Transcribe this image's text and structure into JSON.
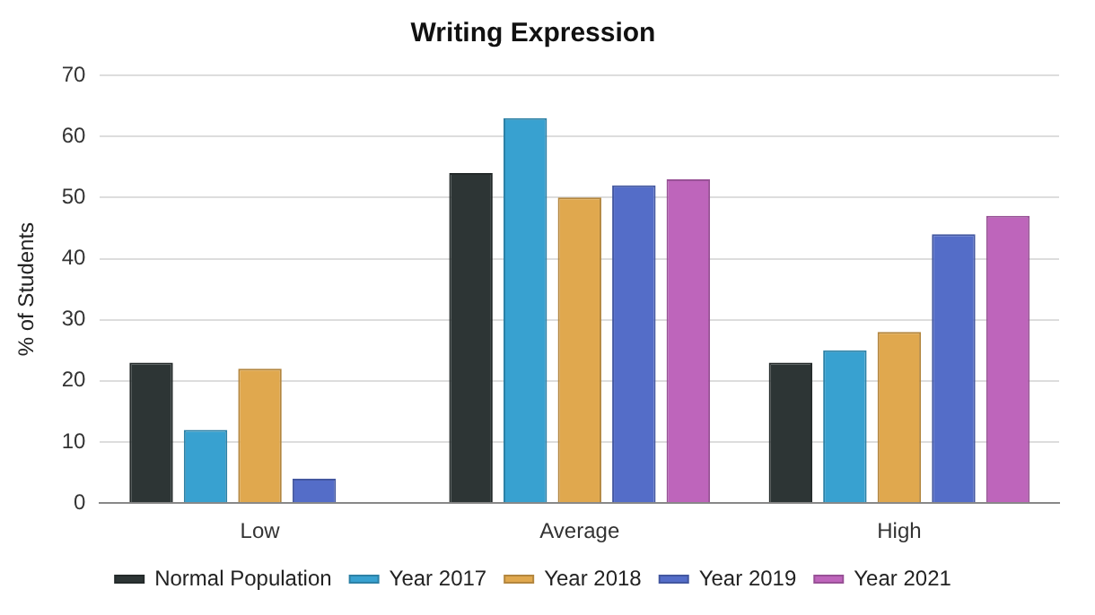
{
  "chart_data": {
    "type": "bar",
    "title": "Writing Expression",
    "ylabel": "% of Students",
    "categories": [
      "Low",
      "Average",
      "High"
    ],
    "series": [
      {
        "name": "Normal Population",
        "color": "#2d3535",
        "values": [
          23,
          54,
          23
        ]
      },
      {
        "name": "Year 2017",
        "color": "#38a1d0",
        "values": [
          12,
          63,
          25
        ]
      },
      {
        "name": "Year 2018",
        "color": "#e0a84e",
        "values": [
          22,
          50,
          28
        ]
      },
      {
        "name": "Year 2019",
        "color": "#546dc8",
        "values": [
          4,
          52,
          44
        ]
      },
      {
        "name": "Year 2021",
        "color": "#be65bb",
        "values": [
          0,
          53,
          47
        ]
      }
    ],
    "ylim": [
      0,
      70
    ],
    "yticks": [
      0,
      10,
      20,
      30,
      40,
      50,
      60,
      70
    ],
    "grid": "y",
    "legend": "bottom"
  }
}
